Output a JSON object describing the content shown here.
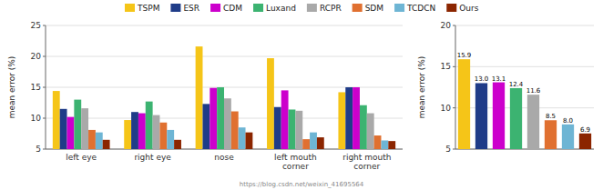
{
  "chart_data": [
    {
      "type": "bar",
      "categories": [
        "left eye",
        "right eye",
        "nose",
        "left mouth\ncorner",
        "right mouth\ncorner"
      ],
      "series": [
        {
          "name": "TSPM",
          "color": "#F5C518",
          "values": [
            14.4,
            9.7,
            21.6,
            19.7,
            14.2
          ]
        },
        {
          "name": "ESR",
          "color": "#1F3C88",
          "values": [
            11.5,
            11.0,
            12.3,
            11.8,
            15.0
          ]
        },
        {
          "name": "CDM",
          "color": "#CC00CC",
          "values": [
            10.2,
            10.8,
            14.9,
            14.5,
            15.0
          ]
        },
        {
          "name": "Luxand",
          "color": "#3CB371",
          "values": [
            13.0,
            12.7,
            15.0,
            11.4,
            12.1
          ]
        },
        {
          "name": "RCPR",
          "color": "#A9A9A9",
          "values": [
            11.6,
            10.5,
            13.2,
            11.2,
            10.8
          ]
        },
        {
          "name": "SDM",
          "color": "#E07030",
          "values": [
            8.1,
            9.3,
            11.1,
            6.6,
            7.2
          ]
        },
        {
          "name": "TCDCN",
          "color": "#6EB5D4",
          "values": [
            7.7,
            8.1,
            8.5,
            7.7,
            6.4
          ]
        },
        {
          "name": "Ours",
          "color": "#8B2500",
          "values": [
            6.5,
            6.5,
            7.7,
            6.9,
            6.3
          ]
        }
      ],
      "ylabel": "mean error (%)",
      "ylim": [
        5,
        25
      ],
      "yticks": [
        5,
        10,
        15,
        20,
        25
      ],
      "grid": true,
      "legend": "top",
      "annotations": [
        "https://blog.csdn.net/weixin_41695564"
      ]
    },
    {
      "type": "bar",
      "categories": [
        null,
        null,
        null,
        null,
        null,
        null,
        null,
        null
      ],
      "values": [
        15.9,
        13.0,
        13.1,
        12.4,
        11.6,
        8.5,
        8.0,
        6.9
      ],
      "value_labels": [
        "15.9",
        "13.0",
        "13.1",
        "12.4",
        "11.6",
        "8.5",
        "8.0",
        "6.9"
      ],
      "colors": [
        "#F5C518",
        "#1F3C88",
        "#CC00CC",
        "#3CB371",
        "#A9A9A9",
        "#E07030",
        "#6EB5D4",
        "#8B2500"
      ],
      "data_labels": true,
      "ylabel": "mean error (%)",
      "ylim": [
        5,
        20
      ],
      "yticks": [
        5,
        10,
        15,
        20
      ],
      "grid": true,
      "tick_labels": "y"
    }
  ]
}
